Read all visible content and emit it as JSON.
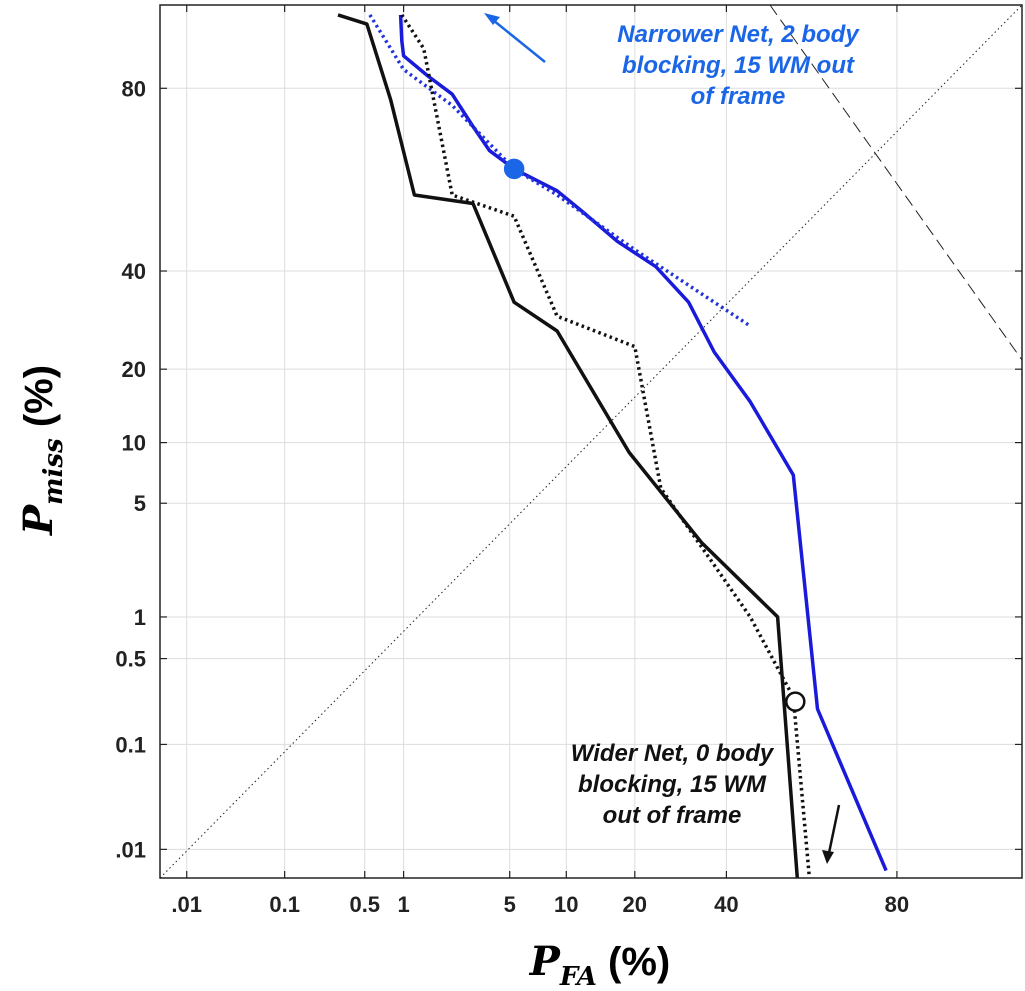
{
  "chart_data": {
    "type": "line",
    "scale": "normal-deviate (DET)",
    "xlabel": {
      "main": "P",
      "sub": "FA",
      "unit": " (%)"
    },
    "ylabel": {
      "main": "P",
      "sub": "miss",
      "unit": " (%)"
    },
    "xlim": [
      0.005,
      95
    ],
    "ylim": [
      0.005,
      91
    ],
    "grid": true,
    "x_ticks": [
      {
        "value": 0.01,
        "label": ".01"
      },
      {
        "value": 0.1,
        "label": "0.1"
      },
      {
        "value": 0.5,
        "label": "0.5"
      },
      {
        "value": 1,
        "label": "1"
      },
      {
        "value": 5,
        "label": "5"
      },
      {
        "value": 10,
        "label": "10"
      },
      {
        "value": 20,
        "label": "20"
      },
      {
        "value": 40,
        "label": "40"
      },
      {
        "value": 80,
        "label": "80"
      }
    ],
    "y_ticks": [
      {
        "value": 0.01,
        "label": ".01"
      },
      {
        "value": 0.1,
        "label": "0.1"
      },
      {
        "value": 0.5,
        "label": "0.5"
      },
      {
        "value": 1,
        "label": "1"
      },
      {
        "value": 5,
        "label": "5"
      },
      {
        "value": 10,
        "label": "10"
      },
      {
        "value": 20,
        "label": "20"
      },
      {
        "value": 40,
        "label": "40"
      },
      {
        "value": 80,
        "label": "80"
      }
    ],
    "series": [
      {
        "color": "#1a1adb",
        "style": "solid",
        "points": [
          [
            0.95,
            90
          ],
          [
            0.97,
            87
          ],
          [
            1.0,
            85
          ],
          [
            1.5,
            82
          ],
          [
            2.2,
            79
          ],
          [
            3.0,
            73
          ],
          [
            3.8,
            68
          ],
          [
            5.3,
            64
          ],
          [
            9.0,
            59
          ],
          [
            12,
            54
          ],
          [
            17,
            47
          ],
          [
            24,
            41
          ],
          [
            31,
            33
          ],
          [
            37,
            23
          ],
          [
            46,
            15
          ],
          [
            57,
            7
          ],
          [
            63,
            0.2
          ],
          [
            78,
            0.006
          ]
        ]
      },
      {
        "color": "#2233dd",
        "style": "dotted",
        "points": [
          [
            0.55,
            90
          ],
          [
            1.0,
            83
          ],
          [
            2.2,
            77
          ],
          [
            5.3,
            64
          ],
          [
            9.0,
            58
          ],
          [
            20,
            45
          ],
          [
            46,
            28
          ]
        ]
      },
      {
        "color": "#111111",
        "style": "solid",
        "points": [
          [
            0.3,
            90
          ],
          [
            0.52,
            89
          ],
          [
            0.8,
            78
          ],
          [
            1.2,
            58
          ],
          [
            3.0,
            56
          ],
          [
            5.3,
            33
          ],
          [
            9.0,
            27
          ],
          [
            19,
            9
          ],
          [
            34,
            3
          ],
          [
            53,
            1
          ],
          [
            58,
            0.005
          ]
        ]
      },
      {
        "color": "#111111",
        "style": "dotted",
        "points": [
          [
            0.97,
            90
          ],
          [
            1.4,
            86
          ],
          [
            2.2,
            58
          ],
          [
            5.3,
            53
          ],
          [
            9.0,
            30
          ],
          [
            20,
            24
          ],
          [
            25,
            6
          ],
          [
            46,
            1
          ],
          [
            57,
            0.25
          ],
          [
            61,
            0.005
          ]
        ]
      }
    ],
    "markers": [
      {
        "x": 5.3,
        "y": 64,
        "fill": "#1a66e6",
        "stroke": "#1a66e6"
      },
      {
        "x": 57.5,
        "y": 0.23,
        "fill": "#ffffff",
        "stroke": "#111111"
      }
    ],
    "annotations": [
      {
        "lines": [
          "Narrower Net, 2 body",
          "blocking, 15 WM out",
          "of frame"
        ],
        "color": "#1a66e6"
      },
      {
        "lines": [
          "Wider Net, 0 body",
          "blocking, 15 WM",
          "out of frame"
        ],
        "color": "#111111"
      }
    ]
  }
}
